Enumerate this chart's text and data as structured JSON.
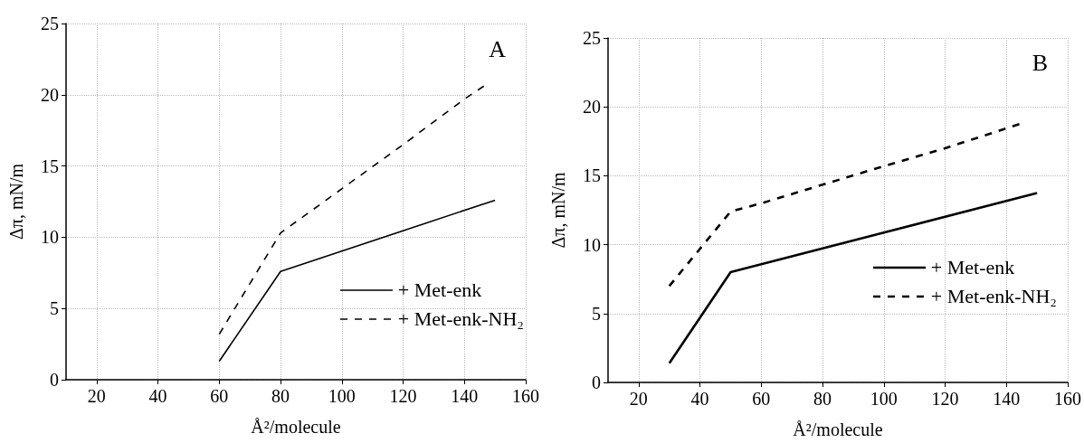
{
  "chart_data": [
    {
      "type": "line",
      "xlabel": "Å²/molecule",
      "ylabel": "Δπ, mN/m",
      "annotations": [
        "A"
      ],
      "xlim": [
        10,
        160
      ],
      "xticks": [
        20,
        40,
        60,
        80,
        100,
        120,
        140,
        160
      ],
      "ylim": [
        0,
        25
      ],
      "yticks": [
        0,
        5,
        10,
        15,
        20,
        25
      ],
      "grid": true,
      "legend": "bottom right",
      "marker": "none",
      "series": [
        {
          "name": "+ Met-enk",
          "color": "#000000",
          "line_style": "solid",
          "x": [
            60,
            80,
            150
          ],
          "values": [
            1.3,
            7.6,
            12.6
          ]
        },
        {
          "name": "+ Met-enk-NH₂",
          "color": "#000000",
          "line_style": "dashed",
          "x": [
            60,
            80,
            100,
            120,
            140,
            147
          ],
          "values": [
            3.2,
            10.3,
            13.4,
            16.5,
            19.7,
            20.7
          ]
        }
      ]
    },
    {
      "type": "line",
      "xlabel": "Å²/molecule",
      "ylabel": "Δπ, mN/m",
      "annotations": [
        "B"
      ],
      "xlim": [
        10,
        160
      ],
      "xticks": [
        20,
        40,
        60,
        80,
        100,
        120,
        140,
        160
      ],
      "ylim": [
        0,
        25
      ],
      "yticks": [
        0,
        5,
        10,
        15,
        20,
        25
      ],
      "grid": true,
      "legend": "right",
      "marker": "none",
      "series": [
        {
          "name": "+ Met-enk",
          "color": "#000000",
          "line_style": "solid",
          "x": [
            30,
            50,
            150
          ],
          "values": [
            1.4,
            8.0,
            13.75
          ]
        },
        {
          "name": "+ Met-enk-NH₂",
          "color": "#000000",
          "line_style": "dashed",
          "x": [
            30,
            50,
            60,
            100,
            120,
            145
          ],
          "values": [
            7.0,
            12.4,
            13.0,
            15.7,
            17.0,
            18.8
          ]
        }
      ]
    }
  ]
}
